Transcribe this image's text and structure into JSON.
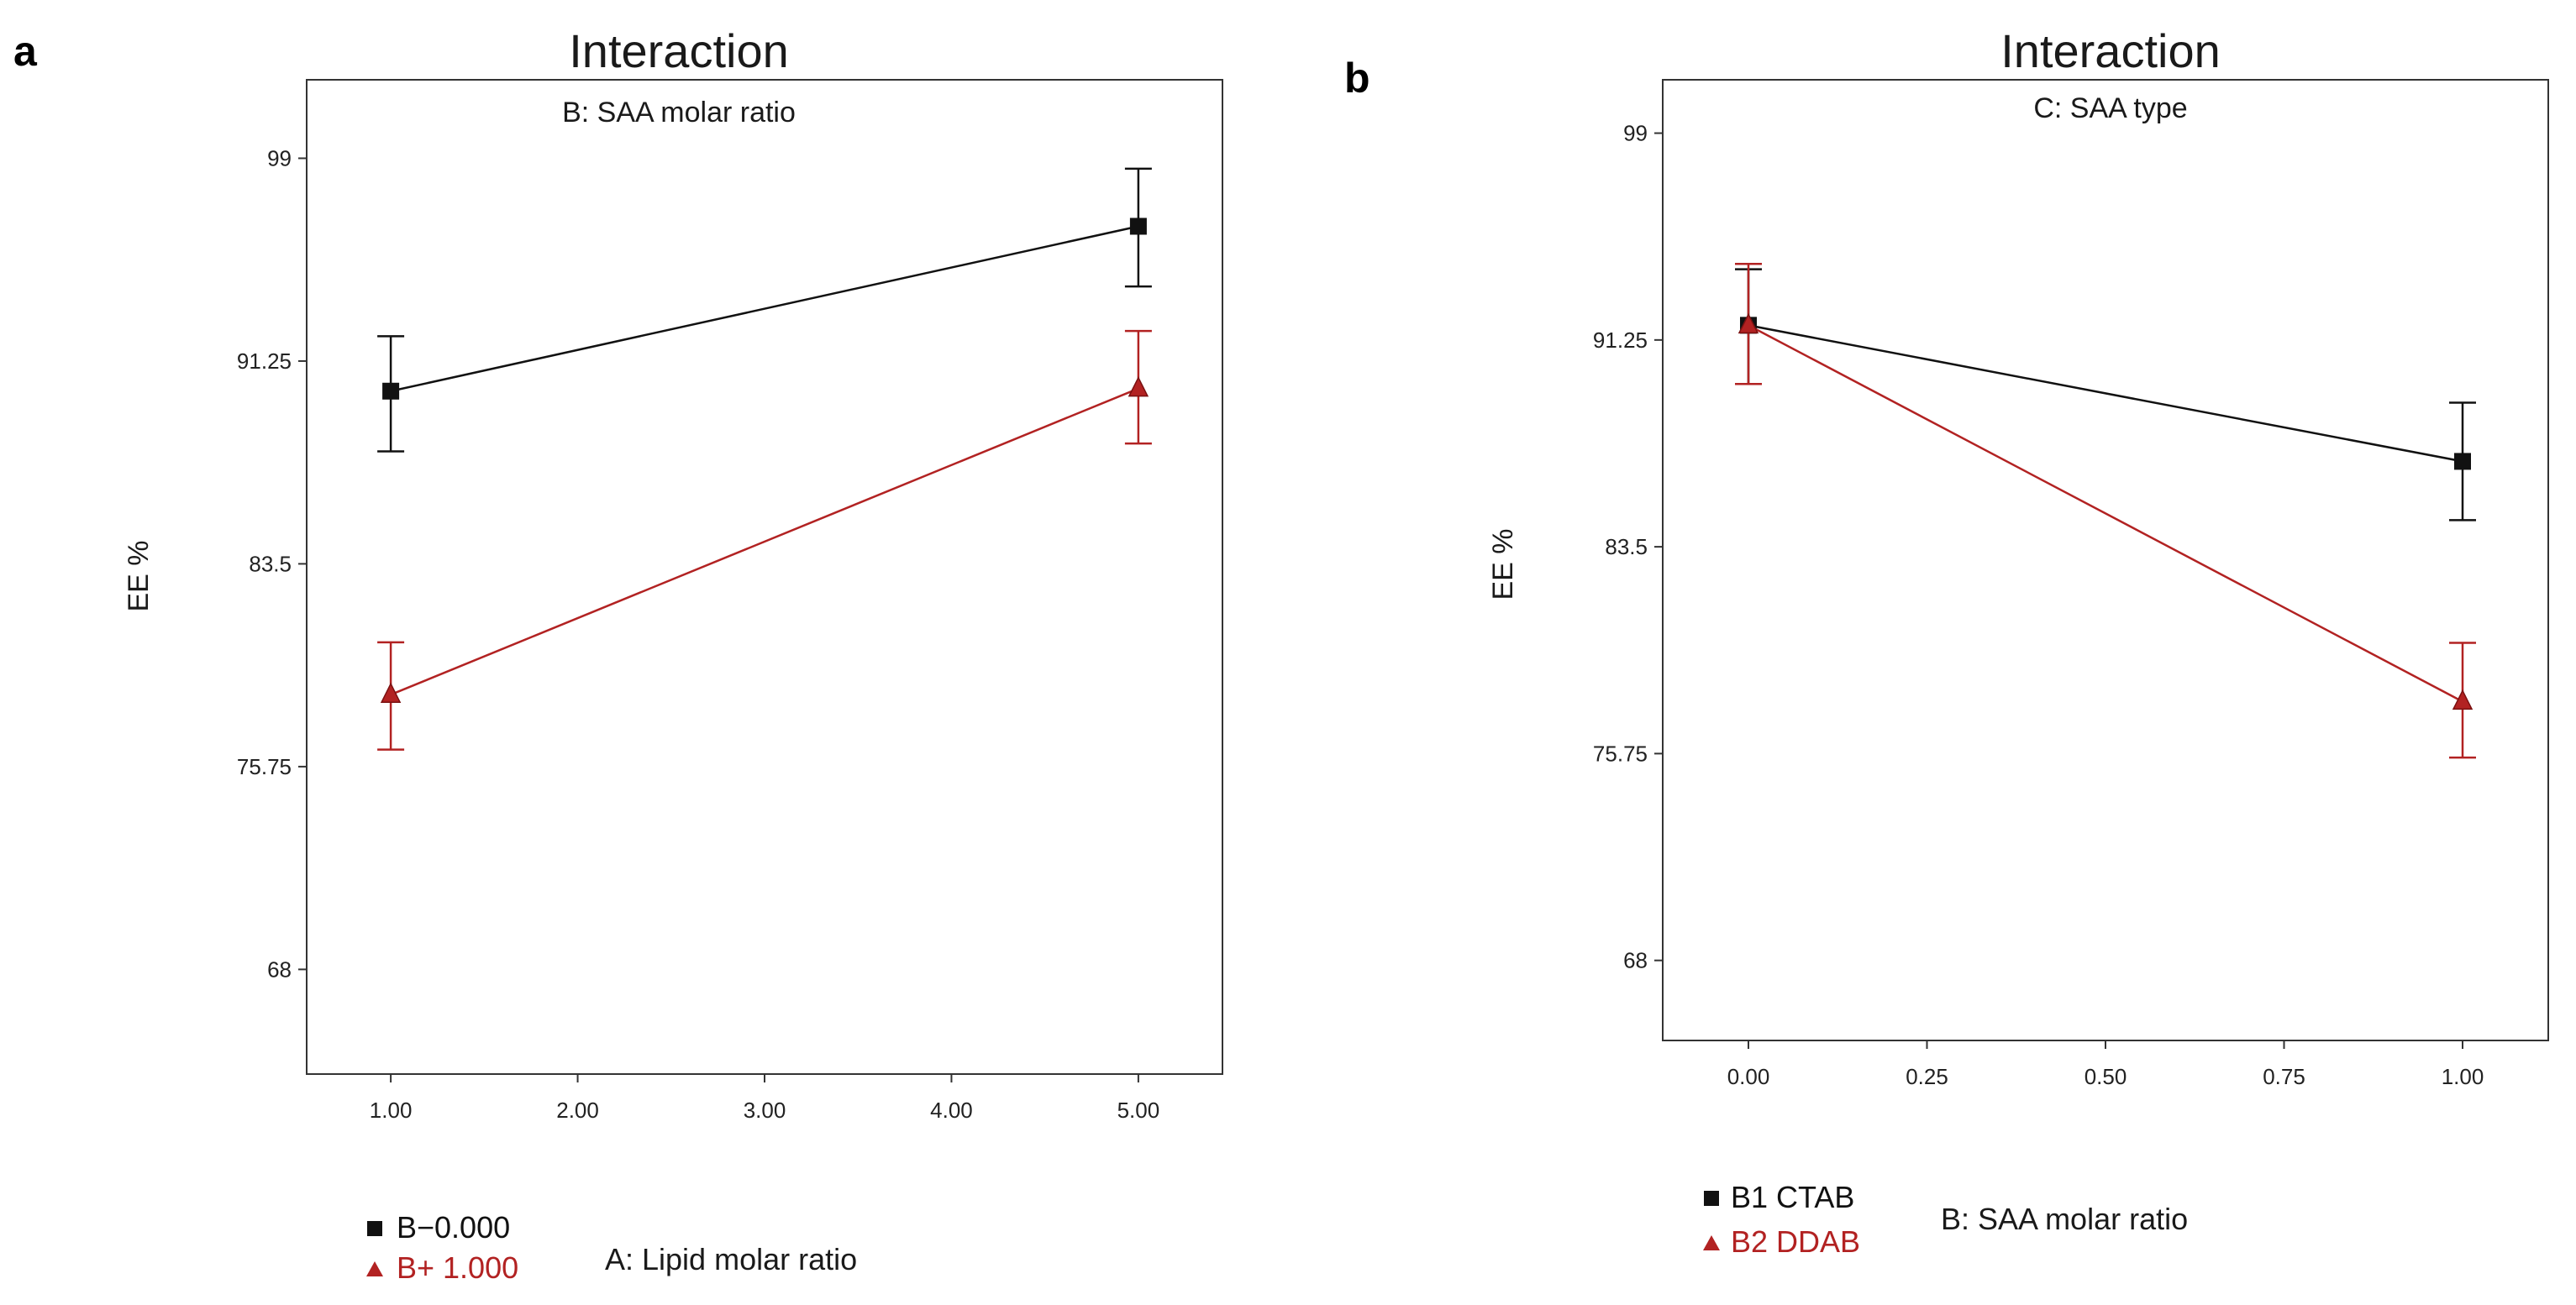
{
  "chart_data": [
    {
      "panel": "a",
      "type": "line",
      "title": "Interaction",
      "subtitle": "B: SAA molar ratio",
      "xlabel": "A: Lipid molar ratio",
      "ylabel": "EE %",
      "xlim": [
        0.55,
        5.45
      ],
      "ylim": [
        64.0,
        102.0
      ],
      "xticks": [
        1,
        2,
        3,
        4,
        5
      ],
      "xtick_labels": [
        "1.00",
        "2.00",
        "3.00",
        "4.00",
        "5.00"
      ],
      "yticks": [
        68,
        75.75,
        83.5,
        91.25,
        99
      ],
      "ytick_labels": [
        "68",
        "75.75",
        "83.5",
        "91.25",
        "99"
      ],
      "series": [
        {
          "name": "B−0.000",
          "color": "#111111",
          "marker": "square",
          "x": [
            1,
            5
          ],
          "y": [
            90.1,
            96.4
          ],
          "err_low": [
            87.8,
            94.1
          ],
          "err_high": [
            92.2,
            98.6
          ]
        },
        {
          "name": "B+ 1.000",
          "color": "#b22222",
          "marker": "triangle",
          "x": [
            1,
            5
          ],
          "y": [
            78.5,
            90.2
          ],
          "err_low": [
            76.4,
            88.1
          ],
          "err_high": [
            80.5,
            92.4
          ]
        }
      ]
    },
    {
      "panel": "b",
      "type": "line",
      "title": "Interaction",
      "subtitle": "C: SAA type",
      "xlabel": "B: SAA molar ratio",
      "ylabel": "EE %",
      "xlim": [
        -0.12,
        1.12
      ],
      "ylim": [
        65.0,
        101.0
      ],
      "xticks": [
        0,
        0.25,
        0.5,
        0.75,
        1
      ],
      "xtick_labels": [
        "0.00",
        "0.25",
        "0.50",
        "0.75",
        "1.00"
      ],
      "yticks": [
        68,
        75.75,
        83.5,
        91.25,
        99
      ],
      "ytick_labels": [
        "68",
        "75.75",
        "83.5",
        "91.25",
        "99"
      ],
      "series": [
        {
          "name": "B1 CTAB",
          "color": "#111111",
          "marker": "square",
          "x": [
            0,
            1
          ],
          "y": [
            91.8,
            86.7
          ],
          "err_low": [
            89.6,
            84.5
          ],
          "err_high": [
            93.9,
            88.9
          ]
        },
        {
          "name": "B2 DDAB",
          "color": "#b22222",
          "marker": "triangle",
          "x": [
            0,
            1
          ],
          "y": [
            91.8,
            77.7
          ],
          "err_low": [
            89.6,
            75.6
          ],
          "err_high": [
            94.1,
            79.9
          ]
        }
      ]
    }
  ]
}
